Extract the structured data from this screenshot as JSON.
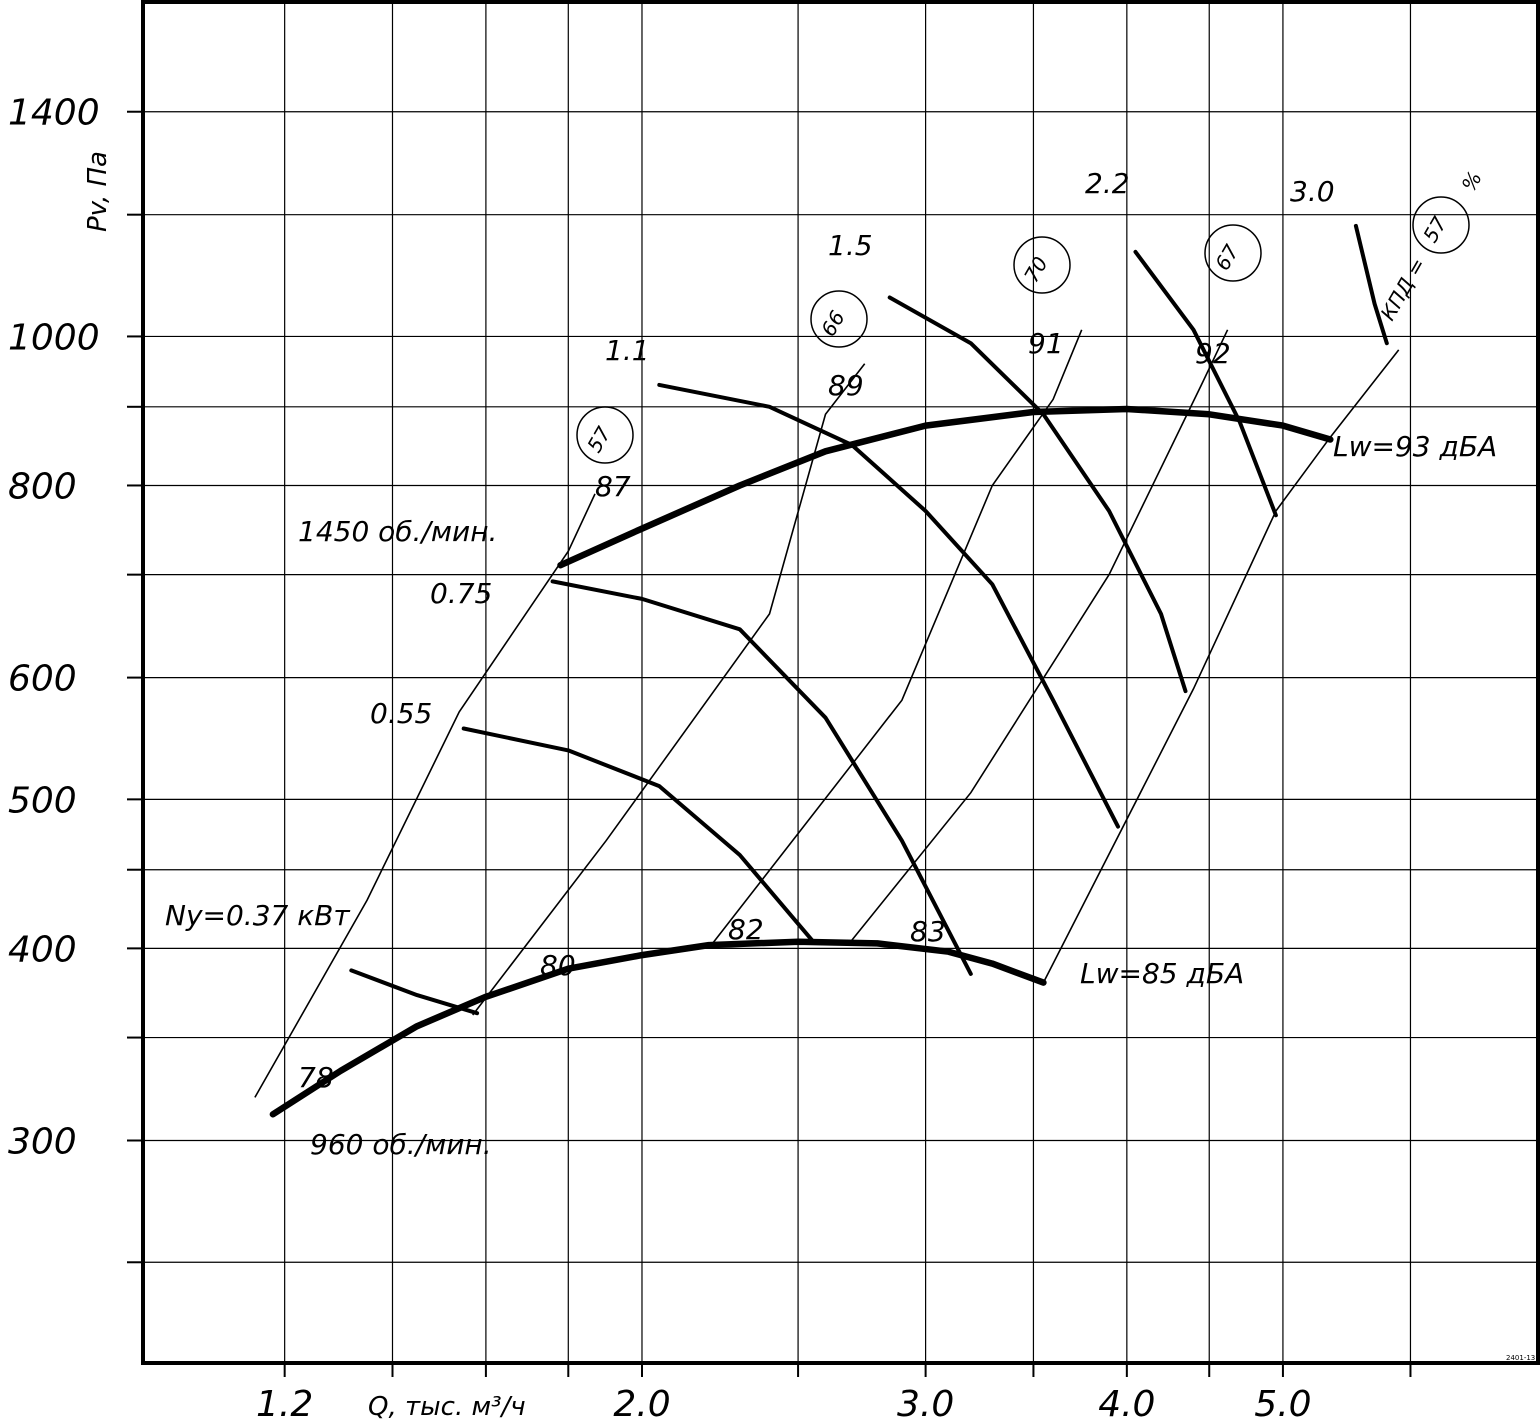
{
  "chart_data": {
    "type": "line",
    "title": "",
    "xlabel": "Q, тыс. м³/ч",
    "ylabel": "Pv, Па",
    "x_scale": "log",
    "y_scale": "log",
    "xlim": [
      0.98,
      7.2
    ],
    "ylim": [
      215,
      1650
    ],
    "grid": true,
    "legend": "none",
    "x_ticks": [
      {
        "value": 1.2,
        "label": "1.2"
      },
      {
        "value": 1.4,
        "label": ""
      },
      {
        "value": 1.6,
        "label": ""
      },
      {
        "value": 1.8,
        "label": ""
      },
      {
        "value": 2.0,
        "label": "2.0"
      },
      {
        "value": 2.5,
        "label": ""
      },
      {
        "value": 3.0,
        "label": "3.0"
      },
      {
        "value": 3.5,
        "label": ""
      },
      {
        "value": 4.0,
        "label": "4.0"
      },
      {
        "value": 4.5,
        "label": ""
      },
      {
        "value": 5.0,
        "label": "5.0"
      },
      {
        "value": 6.0,
        "label": ""
      }
    ],
    "y_ticks": [
      {
        "value": 250,
        "label": ""
      },
      {
        "value": 300,
        "label": "300"
      },
      {
        "value": 350,
        "label": ""
      },
      {
        "value": 400,
        "label": "400"
      },
      {
        "value": 450,
        "label": ""
      },
      {
        "value": 500,
        "label": "500"
      },
      {
        "value": 600,
        "label": "600"
      },
      {
        "value": 700,
        "label": ""
      },
      {
        "value": 800,
        "label": "800"
      },
      {
        "value": 900,
        "label": ""
      },
      {
        "value": 1000,
        "label": "1000"
      },
      {
        "value": 1200,
        "label": ""
      },
      {
        "value": 1400,
        "label": "1400"
      }
    ],
    "speed_curves": [
      {
        "label": "960 об./мин.",
        "points": [
          [
            1.18,
            312
          ],
          [
            1.3,
            333
          ],
          [
            1.45,
            356
          ],
          [
            1.6,
            372
          ],
          [
            1.8,
            388
          ],
          [
            2.0,
            396
          ],
          [
            2.2,
            402
          ],
          [
            2.5,
            404
          ],
          [
            2.8,
            403
          ],
          [
            3.1,
            398
          ],
          [
            3.3,
            391
          ],
          [
            3.55,
            380
          ]
        ]
      },
      {
        "label": "1450 об./мин.",
        "points": [
          [
            1.78,
            710
          ],
          [
            2.0,
            750
          ],
          [
            2.3,
            800
          ],
          [
            2.6,
            842
          ],
          [
            3.0,
            875
          ],
          [
            3.5,
            893
          ],
          [
            4.0,
            897
          ],
          [
            4.5,
            890
          ],
          [
            5.0,
            875
          ],
          [
            5.35,
            857
          ]
        ]
      }
    ],
    "power_curves": [
      {
        "label": "Nу=0.37 кВт",
        "points": [
          [
            1.32,
            387
          ],
          [
            1.45,
            373
          ],
          [
            1.58,
            363
          ]
        ]
      },
      {
        "label": "0.55",
        "points": [
          [
            1.55,
            556
          ],
          [
            1.8,
            538
          ],
          [
            2.05,
            510
          ],
          [
            2.3,
            460
          ],
          [
            2.55,
            405
          ]
        ]
      },
      {
        "label": "0.75",
        "points": [
          [
            1.76,
            693
          ],
          [
            2.0,
            675
          ],
          [
            2.3,
            645
          ],
          [
            2.6,
            565
          ],
          [
            2.9,
            470
          ],
          [
            3.2,
            385
          ]
        ]
      },
      {
        "label": "1.1",
        "points": [
          [
            2.05,
            930
          ],
          [
            2.4,
            900
          ],
          [
            2.7,
            850
          ],
          [
            3.0,
            770
          ],
          [
            3.3,
            690
          ],
          [
            3.6,
            580
          ],
          [
            3.95,
            480
          ]
        ]
      },
      {
        "label": "1.5",
        "points": [
          [
            2.85,
            1060
          ],
          [
            3.2,
            990
          ],
          [
            3.55,
            890
          ],
          [
            3.9,
            770
          ],
          [
            4.2,
            660
          ],
          [
            4.35,
            588
          ]
        ]
      },
      {
        "label": "2.2",
        "points": [
          [
            4.05,
            1135
          ],
          [
            4.4,
            1010
          ],
          [
            4.7,
            880
          ],
          [
            4.95,
            765
          ]
        ]
      },
      {
        "label": "3.0",
        "points": [
          [
            5.55,
            1180
          ],
          [
            5.7,
            1050
          ],
          [
            5.8,
            990
          ]
        ]
      }
    ],
    "efficiency_lines": [
      {
        "label": "57",
        "points": [
          [
            1.15,
            320
          ],
          [
            1.35,
            430
          ],
          [
            1.54,
            570
          ],
          [
            1.8,
            725
          ],
          [
            1.87,
            790
          ]
        ]
      },
      {
        "label": "66",
        "points": [
          [
            1.57,
            362
          ],
          [
            1.9,
            470
          ],
          [
            2.4,
            660
          ],
          [
            2.6,
            890
          ],
          [
            2.75,
            960
          ]
        ]
      },
      {
        "label": "70",
        "points": [
          [
            2.2,
            400
          ],
          [
            2.9,
            580
          ],
          [
            3.3,
            800
          ],
          [
            3.6,
            910
          ],
          [
            3.75,
            1010
          ]
        ]
      },
      {
        "label": "67",
        "points": [
          [
            2.7,
            405
          ],
          [
            3.2,
            505
          ],
          [
            3.9,
            700
          ],
          [
            4.45,
            930
          ],
          [
            4.62,
            1010
          ]
        ]
      },
      {
        "label": "57",
        "points": [
          [
            3.55,
            380
          ],
          [
            4.4,
            590
          ],
          [
            4.95,
            770
          ],
          [
            5.35,
            860
          ],
          [
            5.9,
            980
          ]
        ]
      }
    ],
    "sound_labels": [
      "78",
      "80",
      "82",
      "83",
      "87",
      "89",
      "91",
      "92"
    ],
    "sound_power": [
      "Lw=85 дБА",
      "Lw=93 дБА"
    ],
    "efficiency_title": "КПД =",
    "efficiency_unit": "%",
    "corner_mark": "2401-13"
  }
}
